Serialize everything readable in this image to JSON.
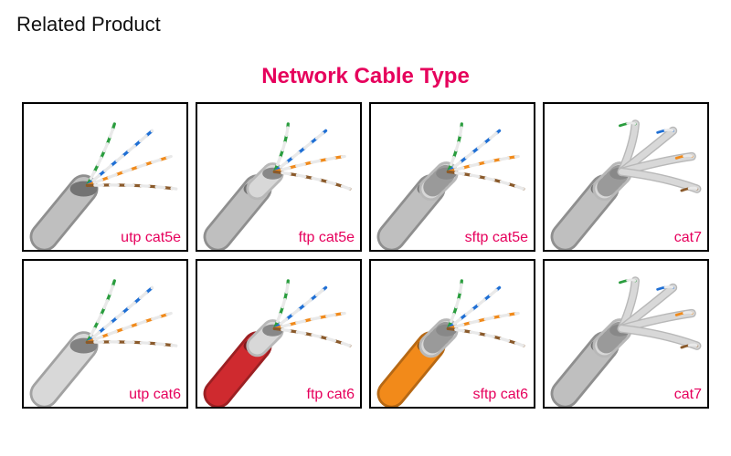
{
  "section_heading": "Related Product",
  "title": "Network Cable Type",
  "title_color": "#e6005c",
  "caption_color": "#e6005c",
  "caption_fontsize": 16,
  "grid": {
    "rows": 2,
    "cols": 4
  },
  "wire_colors": {
    "green": "#2a9d3e",
    "blue": "#1f6fd4",
    "orange": "#f08a1b",
    "brown": "#8a5a2b",
    "white": "#e9e9e9",
    "foil": "#b8b8b8",
    "foil_hi": "#d8d8d8"
  },
  "items": [
    {
      "label": "utp cat5e",
      "jacket": "#bfbfbf",
      "shield": "none",
      "pair_shield": false
    },
    {
      "label": "ftp cat5e",
      "jacket": "#bfbfbf",
      "shield": "foil",
      "pair_shield": false
    },
    {
      "label": "sftp cat5e",
      "jacket": "#bfbfbf",
      "shield": "braid",
      "pair_shield": false
    },
    {
      "label": "cat7",
      "jacket": "#bfbfbf",
      "shield": "braid",
      "pair_shield": true
    },
    {
      "label": "utp cat6",
      "jacket": "#d8d8d8",
      "shield": "none",
      "pair_shield": false
    },
    {
      "label": "ftp cat6",
      "jacket": "#cf2a2f",
      "shield": "foil",
      "pair_shield": false
    },
    {
      "label": "sftp cat6",
      "jacket": "#f28a1a",
      "shield": "braid",
      "pair_shield": false
    },
    {
      "label": "cat7",
      "jacket": "#bfbfbf",
      "shield": "braid",
      "pair_shield": true
    }
  ]
}
